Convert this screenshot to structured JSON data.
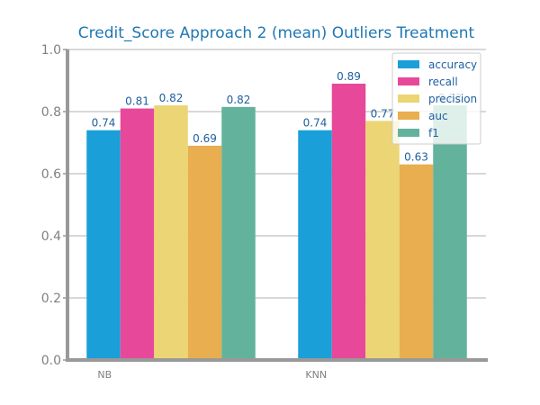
{
  "chart_data": {
    "type": "bar",
    "title": "Credit_Score Approach 2 (mean) Outliers Treatment",
    "xlabel": "",
    "ylabel": "",
    "categories": [
      "NB",
      "KNN"
    ],
    "series": [
      {
        "name": "accuracy",
        "values": [
          0.74,
          0.74
        ],
        "labels": [
          "0.74",
          "0.74"
        ],
        "color": "#1a9fd8"
      },
      {
        "name": "recall",
        "values": [
          0.81,
          0.89
        ],
        "labels": [
          "0.81",
          "0.89"
        ],
        "color": "#e8489a"
      },
      {
        "name": "precision",
        "values": [
          0.82,
          0.77
        ],
        "labels": [
          "0.82",
          "0.77"
        ],
        "color": "#ecd574"
      },
      {
        "name": "auc",
        "values": [
          0.69,
          0.63
        ],
        "labels": [
          "0.69",
          "0.63"
        ],
        "color": "#e9ae4f"
      },
      {
        "name": "f1",
        "values": [
          0.815,
          0.82
        ],
        "labels": [
          "0.82",
          "0.82"
        ],
        "color": "#62b29c"
      }
    ],
    "ylim": [
      0,
      1.0
    ],
    "yticks": [
      "0.0",
      "0.2",
      "0.4",
      "0.6",
      "0.8",
      "1.0"
    ],
    "grid": true,
    "legend_position": "top-right"
  },
  "colors": {
    "title": "#1f77b4",
    "data_label": "#1f5fa0",
    "legend_text": "#1f5fa0",
    "axis": "#999999",
    "grid": "#cccccc"
  }
}
